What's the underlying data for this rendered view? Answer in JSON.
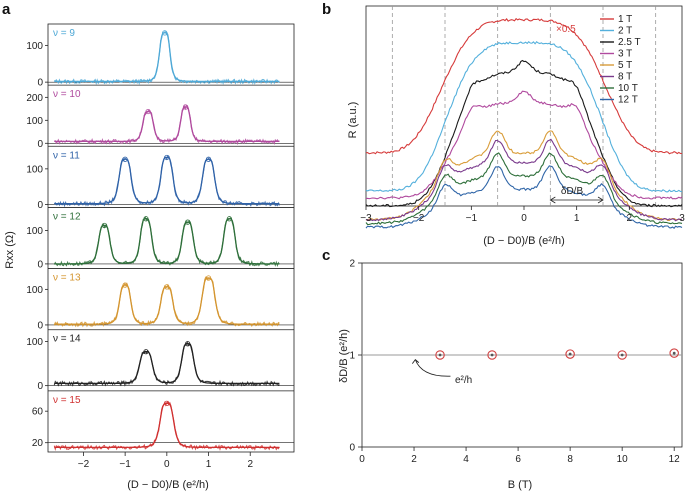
{
  "panels": {
    "a": {
      "letter": "a",
      "ylabel": "Rxx (Ω)",
      "xlabel": "(D − D0)/B (e²/h)",
      "xticks": [
        "−2",
        "−1",
        "0",
        "1",
        "2"
      ],
      "xtick_values": [
        -2,
        -1,
        0,
        1,
        2
      ],
      "xlim": [
        -2.85,
        3.05
      ]
    },
    "b": {
      "letter": "b",
      "ylabel": "R (a.u.)",
      "xlabel": "(D − D0)/B (e²/h)",
      "xticks": [
        "−3",
        "−2",
        "−1",
        "0",
        "1",
        "2",
        "3"
      ],
      "xtick_values": [
        -3,
        -2,
        -1,
        0,
        1,
        2,
        3
      ],
      "xlim": [
        -3,
        3
      ],
      "scale_note": "×0.5",
      "bracket_label": "δD/B",
      "dashed_lines_x": [
        -2.5,
        -1.5,
        -0.5,
        0.5,
        1.5,
        2.5
      ]
    },
    "c": {
      "letter": "c",
      "ylabel": "δD/B (e²/h)",
      "xlabel": "B (T)",
      "xticks": [
        "0",
        "2",
        "4",
        "6",
        "8",
        "10",
        "12"
      ],
      "xtick_values": [
        0,
        2,
        4,
        6,
        8,
        10,
        12
      ],
      "yticks": [
        "0",
        "1",
        "2"
      ],
      "ytick_values": [
        0,
        1,
        2
      ],
      "xlim": [
        0,
        12.3
      ],
      "ylim": [
        0,
        2
      ],
      "annotation": "e²/h"
    }
  },
  "chart_data": [
    {
      "type": "line",
      "panel": "a",
      "xlabel": "(D − D0)/B (e²/h)",
      "ylabel": "Rxx (Ω)",
      "xlim": [
        -2.85,
        3.05
      ],
      "series": [
        {
          "label": "ν = 9",
          "color": "#4ea8d6",
          "baseline": 2,
          "ylim": [
            0,
            150
          ],
          "yticks": [
            0,
            100
          ],
          "peaks": [
            {
              "x": -0.05,
              "height": 132,
              "width": 0.14
            }
          ],
          "fit_color": "#000000"
        },
        {
          "label": "ν = 10",
          "color": "#b04a9e",
          "baseline": 8,
          "ylim": [
            0,
            240
          ],
          "yticks": [
            0,
            100,
            200
          ],
          "peaks": [
            {
              "x": -0.45,
              "height": 130,
              "width": 0.14
            },
            {
              "x": 0.45,
              "height": 150,
              "width": 0.13
            }
          ]
        },
        {
          "label": "ν = 11",
          "color": "#2f62a8",
          "baseline": 2,
          "ylim": [
            0,
            155
          ],
          "yticks": [
            0,
            100
          ],
          "peaks": [
            {
              "x": -1.0,
              "height": 125,
              "width": 0.16
            },
            {
              "x": 0.0,
              "height": 130,
              "width": 0.16
            },
            {
              "x": 1.0,
              "height": 125,
              "width": 0.16
            }
          ]
        },
        {
          "label": "ν = 12",
          "color": "#2e6f3a",
          "baseline": 0,
          "ylim": [
            -5,
            160
          ],
          "yticks": [
            0,
            100
          ],
          "peaks": [
            {
              "x": -1.5,
              "height": 115,
              "width": 0.15
            },
            {
              "x": -0.5,
              "height": 135,
              "width": 0.15
            },
            {
              "x": 0.5,
              "height": 125,
              "width": 0.15
            },
            {
              "x": 1.5,
              "height": 135,
              "width": 0.15
            }
          ]
        },
        {
          "label": "ν = 13",
          "color": "#d4952f",
          "baseline": 2,
          "ylim": [
            -5,
            150
          ],
          "yticks": [
            0,
            100
          ],
          "peaks": [
            {
              "x": -1.0,
              "height": 110,
              "width": 0.15
            },
            {
              "x": 0.0,
              "height": 105,
              "width": 0.16
            },
            {
              "x": 1.0,
              "height": 130,
              "width": 0.17
            }
          ]
        },
        {
          "label": "ν = 14",
          "color": "#222222",
          "baseline": 5,
          "ylim": [
            -5,
            120
          ],
          "yticks": [
            0,
            100
          ],
          "peaks": [
            {
              "x": -0.5,
              "height": 72,
              "width": 0.17
            },
            {
              "x": 0.5,
              "height": 90,
              "width": 0.16
            }
          ]
        },
        {
          "label": "ν = 15",
          "color": "#d03030",
          "baseline": 14,
          "ylim": [
            12,
            82
          ],
          "yticks": [
            20,
            60
          ],
          "peaks": [
            {
              "x": 0.0,
              "height": 56,
              "width": 0.18
            }
          ]
        }
      ]
    },
    {
      "type": "line",
      "panel": "b",
      "xlabel": "(D − D0)/B (e²/h)",
      "ylabel": "R (a.u.)",
      "xlim": [
        -3,
        3
      ],
      "series": [
        {
          "name": "1 T",
          "color": "#d63b3b",
          "offset": 0.28,
          "envelope": 0.7,
          "envelope_width": 1.7,
          "peaks": []
        },
        {
          "name": "2 T",
          "color": "#54b0dc",
          "offset": 0.08,
          "envelope": 0.78,
          "envelope_width": 1.6,
          "peaks": []
        },
        {
          "name": "2.5 T",
          "color": "#1a1a1a",
          "offset": 0.05,
          "envelope": 0.7,
          "envelope_width": 1.5,
          "peaks": [
            {
              "x": -1.0,
              "height": 0.05
            },
            {
              "x": 0.0,
              "height": 0.06
            },
            {
              "x": 1.0,
              "height": 0.05
            }
          ]
        },
        {
          "name": "3 T",
          "color": "#b04a9e",
          "offset": 0.1,
          "envelope": 0.5,
          "envelope_width": 1.5,
          "peaks": [
            {
              "x": -1.0,
              "height": 0.06
            },
            {
              "x": 0.0,
              "height": 0.06
            },
            {
              "x": 1.0,
              "height": 0.07
            }
          ]
        },
        {
          "name": "5 T",
          "color": "#d99d3a",
          "offset": 0.06,
          "envelope": 0.35,
          "envelope_width": 1.8,
          "peaks": [
            {
              "x": -1.5,
              "height": 0.1
            },
            {
              "x": -0.5,
              "height": 0.12
            },
            {
              "x": 0.5,
              "height": 0.12
            },
            {
              "x": 1.5,
              "height": 0.1
            }
          ]
        },
        {
          "name": "8 T",
          "color": "#7a3a8c",
          "offset": 0.06,
          "envelope": 0.3,
          "envelope_width": 1.8,
          "peaks": [
            {
              "x": -1.5,
              "height": 0.1
            },
            {
              "x": -0.5,
              "height": 0.12
            },
            {
              "x": 0.5,
              "height": 0.12
            },
            {
              "x": 1.5,
              "height": 0.1
            }
          ]
        },
        {
          "name": "10 T",
          "color": "#2e6f3a",
          "offset": 0.04,
          "envelope": 0.25,
          "envelope_width": 1.8,
          "peaks": [
            {
              "x": -1.5,
              "height": 0.1
            },
            {
              "x": -0.5,
              "height": 0.12
            },
            {
              "x": 0.5,
              "height": 0.12
            },
            {
              "x": 1.5,
              "height": 0.1
            }
          ]
        },
        {
          "name": "12 T",
          "color": "#3066a8",
          "offset": 0.02,
          "envelope": 0.2,
          "envelope_width": 1.8,
          "peaks": [
            {
              "x": -1.5,
              "height": 0.1
            },
            {
              "x": -0.5,
              "height": 0.12
            },
            {
              "x": 0.5,
              "height": 0.12
            },
            {
              "x": 1.5,
              "height": 0.1
            }
          ]
        }
      ]
    },
    {
      "type": "scatter",
      "panel": "c",
      "xlabel": "B (T)",
      "ylabel": "δD/B (e²/h)",
      "xlim": [
        0,
        12.3
      ],
      "ylim": [
        0,
        2
      ],
      "reference_line_y": 1,
      "points": [
        {
          "x": 3,
          "y": 1.0
        },
        {
          "x": 5,
          "y": 1.0
        },
        {
          "x": 8,
          "y": 1.01
        },
        {
          "x": 10,
          "y": 1.0
        },
        {
          "x": 12,
          "y": 1.02
        }
      ],
      "marker_color": "#d04040"
    }
  ]
}
